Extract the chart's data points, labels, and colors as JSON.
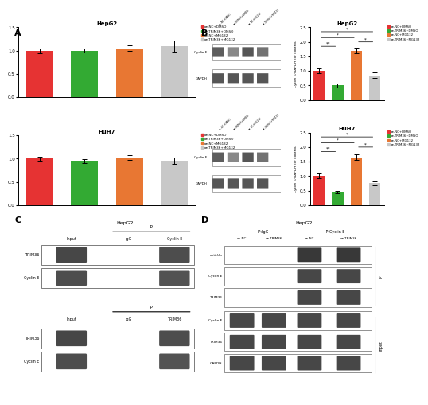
{
  "panel_A": {
    "hepg2": {
      "title": "HepG2",
      "values": [
        1.0,
        1.0,
        1.05,
        1.1
      ],
      "errors": [
        0.05,
        0.04,
        0.06,
        0.12
      ],
      "colors": [
        "#e63333",
        "#33aa33",
        "#e87733",
        "#c8c8c8"
      ],
      "ylim": [
        0.0,
        1.5
      ],
      "yticks": [
        0.0,
        0.5,
        1.0,
        1.5
      ]
    },
    "huh7": {
      "title": "HuH7",
      "values": [
        1.0,
        0.95,
        1.02,
        0.95
      ],
      "errors": [
        0.05,
        0.04,
        0.05,
        0.07
      ],
      "colors": [
        "#e63333",
        "#33aa33",
        "#e87733",
        "#c8c8c8"
      ],
      "ylim": [
        0.0,
        1.5
      ],
      "yticks": [
        0.0,
        0.5,
        1.0,
        1.5
      ]
    },
    "legend_labels": [
      "oe-NC+DMSO",
      "oe-TRIM36+DMSO",
      "oe-NC+MG132",
      "oe-TRIM36+MG132"
    ],
    "legend_colors": [
      "#e63333",
      "#33aa33",
      "#e87733",
      "#c8c8c8"
    ]
  },
  "panel_B_bars": {
    "hepg2": {
      "title": "HepG2",
      "values": [
        1.0,
        0.5,
        1.7,
        0.85
      ],
      "errors": [
        0.08,
        0.06,
        0.1,
        0.1
      ],
      "colors": [
        "#e63333",
        "#33aa33",
        "#e87733",
        "#c8c8c8"
      ],
      "ylabel": "Cyclin E/GAPDH (of control)",
      "ylim": [
        0.0,
        2.5
      ],
      "yticks": [
        0.0,
        0.5,
        1.0,
        1.5,
        2.0,
        2.5
      ]
    },
    "huh7": {
      "title": "HuH7",
      "values": [
        1.0,
        0.45,
        1.65,
        0.75
      ],
      "errors": [
        0.08,
        0.05,
        0.1,
        0.08
      ],
      "colors": [
        "#e63333",
        "#33aa33",
        "#e87733",
        "#c8c8c8"
      ],
      "ylabel": "Cyclin E/GAPDH (of control)",
      "ylim": [
        0.0,
        2.5
      ],
      "yticks": [
        0.0,
        0.5,
        1.0,
        1.5,
        2.0,
        2.5
      ]
    },
    "legend_labels": [
      "oe-NC+DMSO",
      "oe-TRIM36+DMSO",
      "oe-NC+MG132",
      "oe-TRIM36+MG132"
    ],
    "legend_colors": [
      "#e63333",
      "#33aa33",
      "#e87733",
      "#c8c8c8"
    ]
  },
  "background_color": "#ffffff"
}
